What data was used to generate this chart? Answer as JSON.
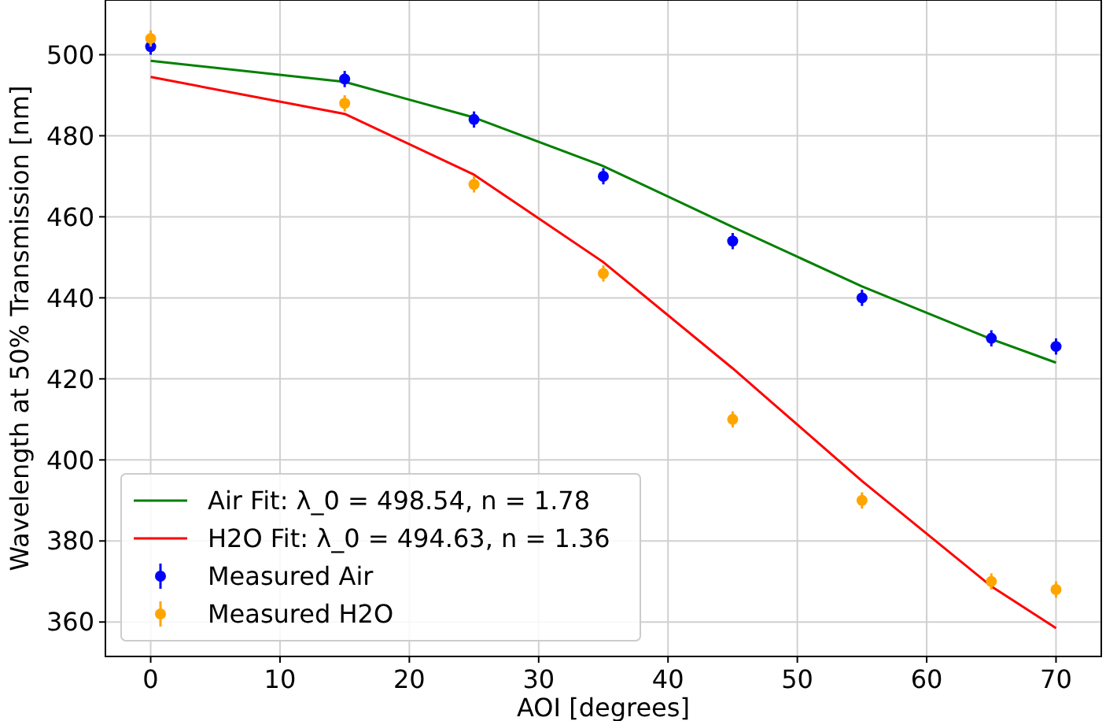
{
  "chart_data": {
    "type": "line",
    "xlabel": "AOI [degrees]",
    "ylabel": "Wavelength at 50% Transmission [nm]",
    "x": [
      0,
      15,
      25,
      35,
      45,
      55,
      65,
      70
    ],
    "xlim": [
      -3.5,
      73.5
    ],
    "xticks": [
      0,
      10,
      20,
      30,
      40,
      50,
      60,
      70
    ],
    "ylim": [
      351.5,
      513.5
    ],
    "yticks": [
      360,
      380,
      400,
      420,
      440,
      460,
      480,
      500
    ],
    "grid": true,
    "legend": "bottom left",
    "series": [
      {
        "name": "Air Fit: λ_0 = 498.54, n = 1.78",
        "color": "#008000",
        "marker": "none",
        "values": [
          498.5,
          493.3,
          484.5,
          472.5,
          457.5,
          442.8,
          429.8,
          424
        ]
      },
      {
        "name": "H2O Fit: λ_0 = 494.63, n = 1.36",
        "color": "#ff0000",
        "marker": "none",
        "values": [
          494.5,
          485.4,
          470.4,
          448.8,
          422.6,
          394.8,
          368.8,
          358.5
        ]
      },
      {
        "name": "Measured Air",
        "type": "scatter",
        "color": "#0000ff",
        "marker": "circle",
        "values": [
          502,
          494,
          484,
          470,
          454,
          440,
          430,
          428
        ],
        "errors": [
          2,
          2,
          2,
          2,
          2,
          2,
          2,
          2
        ]
      },
      {
        "name": "Measured H2O",
        "type": "scatter",
        "color": "#ffa500",
        "marker": "circle",
        "values": [
          504,
          488,
          468,
          446,
          410,
          390,
          370,
          368
        ],
        "errors": [
          2,
          2,
          2,
          2,
          2,
          2,
          2,
          2
        ]
      }
    ]
  }
}
